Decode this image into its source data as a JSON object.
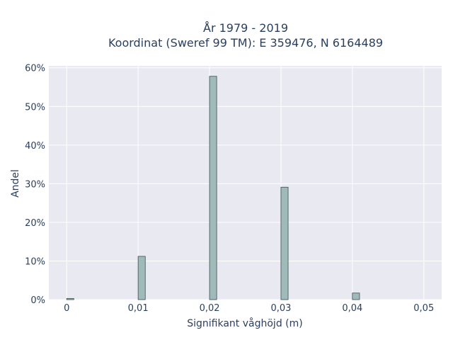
{
  "chart_data": {
    "type": "bar",
    "title_lines": [
      "År 1979 - 2019",
      "Koordinat (Sweref 99 TM): E 359476, N 6164489"
    ],
    "xlabel": "Signifikant våghöjd (m)",
    "ylabel": "Andel",
    "x_ticks": [
      {
        "value": 0,
        "label": "0"
      },
      {
        "value": 0.01,
        "label": "0,01"
      },
      {
        "value": 0.02,
        "label": "0,02"
      },
      {
        "value": 0.03,
        "label": "0,03"
      },
      {
        "value": 0.04,
        "label": "0,04"
      },
      {
        "value": 0.05,
        "label": "0,05"
      }
    ],
    "y_ticks": [
      {
        "value": 0,
        "label": "0%"
      },
      {
        "value": 10,
        "label": "10%"
      },
      {
        "value": 20,
        "label": "20%"
      },
      {
        "value": 30,
        "label": "30%"
      },
      {
        "value": 40,
        "label": "40%"
      },
      {
        "value": 50,
        "label": "50%"
      },
      {
        "value": 60,
        "label": "60%"
      }
    ],
    "xlim": [
      -0.0025,
      0.0525
    ],
    "ylim": [
      0,
      60.5
    ],
    "bin_width": 0.001,
    "bins": [
      {
        "x0": 0.0,
        "value": 0.3
      },
      {
        "x0": 0.01,
        "value": 11.2
      },
      {
        "x0": 0.02,
        "value": 57.8
      },
      {
        "x0": 0.03,
        "value": 29.1
      },
      {
        "x0": 0.04,
        "value": 1.7
      }
    ],
    "grid": true,
    "colors": {
      "bar_fill": "#a0b9b9",
      "bar_stroke": "#3d4f4f",
      "plot_bg": "#e9e9f1",
      "grid": "#ffffff"
    }
  }
}
